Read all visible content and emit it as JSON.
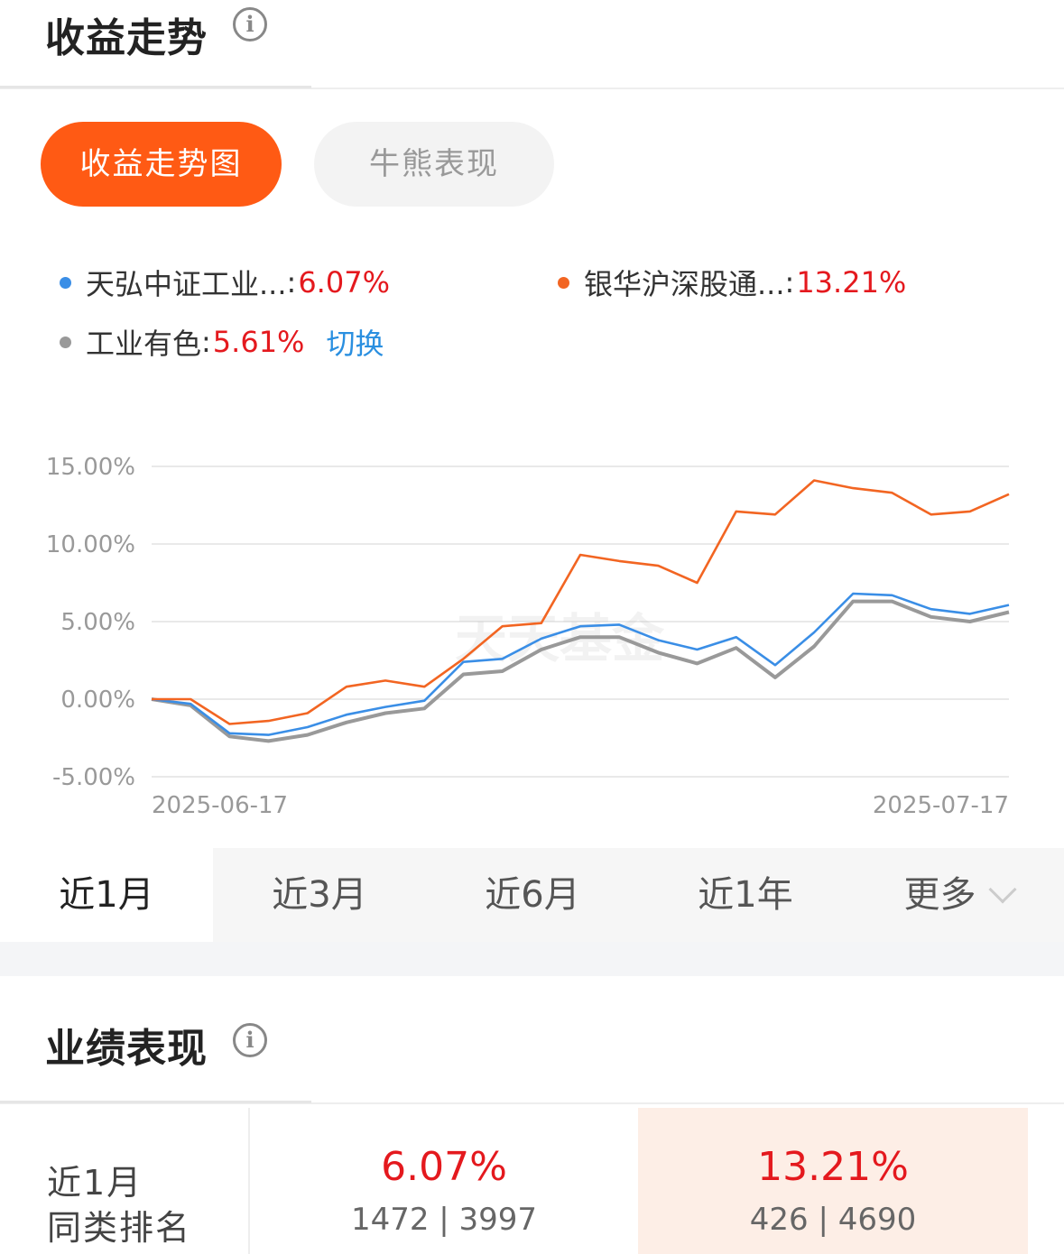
{
  "section1": {
    "title": "收益走势",
    "info_icon": "info-icon"
  },
  "chart_tabs": {
    "active": "收益走势图",
    "inactive": "牛熊表现"
  },
  "legend": [
    {
      "name": "天弘中证工业...",
      "sep": ":",
      "value": "6.07%",
      "color": "#3a8ee6"
    },
    {
      "name": "银华沪深股通...",
      "sep": ":",
      "value": "13.21%",
      "color": "#f26522"
    },
    {
      "name": "工业有色",
      "sep": ":",
      "value": "5.61%",
      "color": "#999999"
    }
  ],
  "switch_label": "切换",
  "watermark": "天天基金",
  "chart_data": {
    "type": "line",
    "y_ticks": [
      "15.00%",
      "10.00%",
      "5.00%",
      "0.00%",
      "-5.00%"
    ],
    "ylim": [
      -5,
      15
    ],
    "x_start_label": "2025-06-17",
    "x_end_label": "2025-07-17",
    "series": [
      {
        "name": "银华沪深股通...",
        "color": "#f26522",
        "values": [
          0.0,
          0.0,
          -1.6,
          -1.4,
          -0.9,
          0.8,
          1.2,
          0.8,
          2.6,
          4.7,
          4.9,
          9.3,
          8.9,
          8.6,
          7.5,
          12.1,
          11.9,
          14.1,
          13.6,
          13.3,
          11.9,
          12.1,
          13.21
        ]
      },
      {
        "name": "天弘中证工业...",
        "color": "#3a8ee6",
        "values": [
          0.0,
          -0.3,
          -2.2,
          -2.3,
          -1.8,
          -1.0,
          -0.5,
          -0.1,
          2.4,
          2.6,
          3.9,
          4.7,
          4.8,
          3.8,
          3.2,
          4.0,
          2.2,
          4.3,
          6.8,
          6.7,
          5.8,
          5.5,
          6.07
        ]
      },
      {
        "name": "工业有色",
        "color": "#999999",
        "values": [
          0.0,
          -0.4,
          -2.4,
          -2.7,
          -2.3,
          -1.5,
          -0.9,
          -0.6,
          1.6,
          1.8,
          3.2,
          4.0,
          4.0,
          3.0,
          2.3,
          3.3,
          1.4,
          3.4,
          6.3,
          6.3,
          5.3,
          5.0,
          5.61
        ]
      }
    ]
  },
  "range_tabs": [
    "近1月",
    "近3月",
    "近6月",
    "近1年",
    "更多"
  ],
  "section2": {
    "title": "业绩表现",
    "info_icon": "info-icon"
  },
  "performance": {
    "label_line1": "近1月",
    "label_line2": "同类排名",
    "fund": {
      "return": "6.07%",
      "rank": "1472 | 3997"
    },
    "compare": {
      "return": "13.21%",
      "rank": "426 | 4690"
    }
  }
}
